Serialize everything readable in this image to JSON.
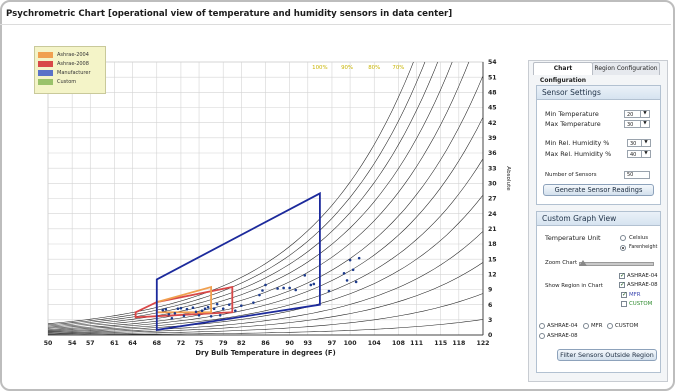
{
  "page_title": "Psychrometric Chart [operational view of temperature and humidity sensors in data center]",
  "legend": [
    {
      "label": "Ashrae-2004",
      "color": "#f0a050"
    },
    {
      "label": "Ashrae-2008",
      "color": "#d84848"
    },
    {
      "label": "Manufacturer",
      "color": "#5a72c8"
    },
    {
      "label": "Custom",
      "color": "#9ac26a"
    }
  ],
  "chart_data": {
    "type": "scatter",
    "title": "",
    "xlabel": "Dry Bulb Temperature in degrees (F)",
    "ylabel": "Absolute",
    "x_ticks": [
      50,
      54,
      57,
      61,
      64,
      68,
      72,
      75,
      79,
      82,
      86,
      90,
      93,
      97,
      100,
      104,
      108,
      111,
      115,
      118,
      122
    ],
    "y_ticks": [
      0,
      3,
      6,
      9,
      12,
      15,
      18,
      21,
      24,
      27,
      30,
      33,
      36,
      39,
      42,
      45,
      48,
      51,
      54
    ],
    "xlim": [
      50,
      122
    ],
    "ylim": [
      0,
      54
    ],
    "grid": true,
    "rh_labels": [
      "100%",
      "90%",
      "80%",
      "70%"
    ],
    "rh_label_color": "#c8b400",
    "region_colors": {
      "ashrae_2004": "#f0a050",
      "ashrae_2008": "#d84848",
      "manufacturer": "#1c2a9c"
    },
    "regions": {
      "manufacturer": [
        [
          68,
          11
        ],
        [
          95,
          28
        ],
        [
          95,
          6
        ],
        [
          68,
          1
        ]
      ],
      "ashrae_2008": [
        [
          64.5,
          4.5
        ],
        [
          68,
          6.5
        ],
        [
          80.5,
          9.5
        ],
        [
          80.5,
          4.5
        ],
        [
          64.5,
          3.5
        ]
      ],
      "ashrae_2004": [
        [
          68,
          6.5
        ],
        [
          77,
          9.5
        ],
        [
          77,
          4.5
        ],
        [
          68,
          4.5
        ]
      ]
    },
    "series": [
      {
        "values": [
          [
            69,
            4.9
          ],
          [
            69.5,
            5.1
          ],
          [
            70,
            4.1
          ],
          [
            70.5,
            3.3
          ],
          [
            71,
            4.3
          ],
          [
            71.5,
            5.2
          ],
          [
            72,
            5.3
          ],
          [
            72.5,
            3.8
          ],
          [
            73,
            5.1
          ],
          [
            74,
            5.4
          ],
          [
            74.5,
            4.6
          ],
          [
            75,
            3.9
          ],
          [
            75.5,
            4.8
          ],
          [
            76,
            5.2
          ],
          [
            76.5,
            5.5
          ],
          [
            77,
            3.7
          ],
          [
            77.5,
            5.2
          ],
          [
            78,
            6.1
          ],
          [
            78.5,
            3.9
          ],
          [
            79,
            5.2
          ],
          [
            80,
            6.0
          ],
          [
            81,
            4.8
          ],
          [
            82,
            5.8
          ],
          [
            84,
            6.4
          ],
          [
            85,
            7.9
          ],
          [
            85.5,
            8.8
          ],
          [
            86,
            9.9
          ],
          [
            88,
            9.2
          ],
          [
            89,
            9.3
          ],
          [
            90,
            9.3
          ],
          [
            91,
            8.9
          ],
          [
            92.5,
            11.8
          ],
          [
            93.5,
            9.9
          ],
          [
            94,
            10.1
          ],
          [
            96.5,
            8.7
          ],
          [
            99,
            12.2
          ],
          [
            99.5,
            10.8
          ],
          [
            100,
            14.8
          ],
          [
            100.5,
            12.9
          ],
          [
            101,
            10.5
          ],
          [
            101.5,
            15.2
          ]
        ]
      }
    ],
    "colors": {
      "points": "#1c3a8c",
      "axis": "#444444",
      "grid": "#d4d4d4",
      "curves": "#202020"
    }
  },
  "panel": {
    "tabs": [
      "Chart Configuration",
      "Region Configuration"
    ],
    "sensor_settings": {
      "title": "Sensor Settings",
      "min_temp_label": "Min  Temperature",
      "min_temp_value": "20",
      "max_temp_label": "Max  Temperature",
      "max_temp_value": "30",
      "min_rh_label": "Min  Rel. Humidity %",
      "min_rh_value": "30",
      "max_rh_label": "Max  Rel. Humidity %",
      "max_rh_value": "40",
      "num_sensors_label": "Number of Sensors",
      "num_sensors_value": "50",
      "generate_button": "Generate Sensor Readings"
    },
    "graph_view": {
      "title": "Custom Graph View",
      "temp_unit_label": "Temperature Unit",
      "celsius_label": "Celsius",
      "fahrenheit_label": "Farenheight",
      "zoom_label": "Zoom Chart",
      "zoom_level": 0.05,
      "show_region_label": "Show Region in Chart",
      "regions": [
        {
          "label": "ASHRAE-04",
          "checked": true,
          "color": "#222222"
        },
        {
          "label": "ASHRAE-08",
          "checked": true,
          "color": "#222222"
        },
        {
          "label": "MFR",
          "checked": true,
          "color": "#3a46b0"
        },
        {
          "label": "CUSTOM",
          "checked": false,
          "color": "#2e8b2e"
        }
      ],
      "filter_options": [
        "ASHRAE-04",
        "MFR",
        "CUSTOM",
        "ASHRAE-08"
      ],
      "filter_button": "Filter Sensors Outside Region"
    }
  }
}
